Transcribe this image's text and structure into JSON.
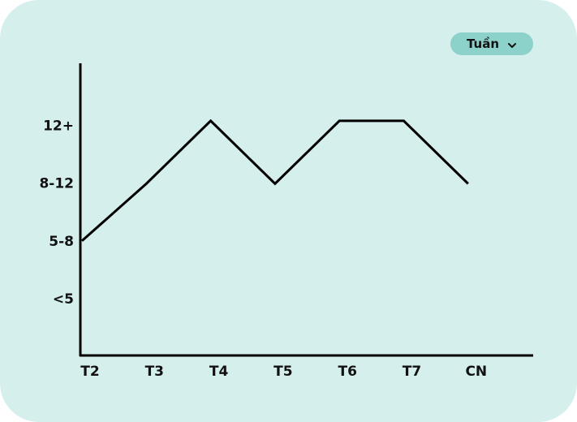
{
  "period_selector": {
    "label": "Tuần",
    "icon": "chevron-down-icon"
  },
  "chart_data": {
    "type": "line",
    "categories": [
      "T2",
      "T3",
      "T4",
      "T5",
      "T6",
      "T7",
      "CN"
    ],
    "y_levels": [
      "<5",
      "5-8",
      "8-12",
      "12+"
    ],
    "series": [
      {
        "values": [
          1,
          1.99,
          3.08,
          1.99,
          3.08,
          3.08,
          1.99
        ]
      }
    ],
    "ylim": [
      -1,
      3.5
    ],
    "grid": false,
    "line_color": "#000000",
    "background_color": "#d5efed"
  }
}
